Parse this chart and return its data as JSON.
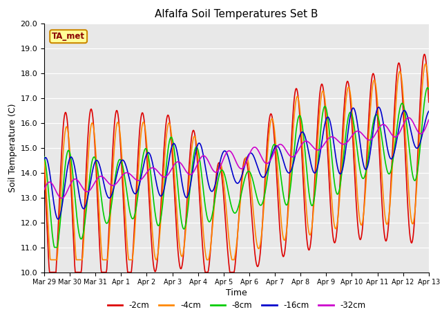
{
  "title": "Alfalfa Soil Temperatures Set B",
  "xlabel": "Time",
  "ylabel": "Soil Temperature (C)",
  "ylim": [
    10.0,
    20.0
  ],
  "yticks": [
    10.0,
    11.0,
    12.0,
    13.0,
    14.0,
    15.0,
    16.0,
    17.0,
    18.0,
    19.0,
    20.0
  ],
  "bg_color": "#e8e8e8",
  "annotation_text": "TA_met",
  "annotation_bg": "#ffff99",
  "annotation_border": "#cc8800",
  "series": {
    "-2cm": {
      "color": "#dd0000",
      "lw": 1.2
    },
    "-4cm": {
      "color": "#ff8800",
      "lw": 1.2
    },
    "-8cm": {
      "color": "#00cc00",
      "lw": 1.2
    },
    "-16cm": {
      "color": "#0000cc",
      "lw": 1.2
    },
    "-32cm": {
      "color": "#cc00cc",
      "lw": 1.2
    }
  },
  "xtick_labels": [
    "Mar 29",
    "Mar 30",
    "Mar 31",
    "Apr 1",
    "Apr 2",
    "Apr 3",
    "Apr 4",
    "Apr 5",
    "Apr 6",
    "Apr 7",
    "Apr 8",
    "Apr 9",
    "Apr 10",
    "Apr 11",
    "Apr 12",
    "Apr 13"
  ]
}
